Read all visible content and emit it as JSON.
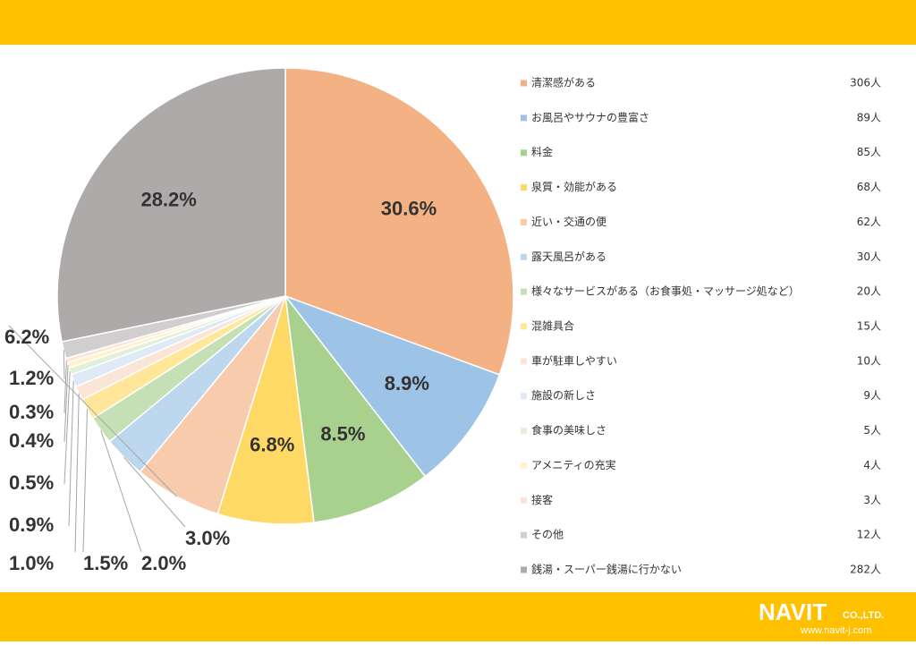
{
  "chart_data": {
    "type": "pie",
    "categories": [
      "清潔感がある",
      "お風呂やサウナの豊富さ",
      "料金",
      "泉質・効能がある",
      "近い・交通の便",
      "露天風呂がある",
      "様々なサービスがある（お食事処・マッサージ処など）",
      "混雑具合",
      "車が駐車しやすい",
      "施設の新しさ",
      "食事の美味しさ",
      "アメニティの充実",
      "接客",
      "その他",
      "銭湯・スーパー銭湯に行かない"
    ],
    "values": [
      30.6,
      8.9,
      8.5,
      6.8,
      6.2,
      3.0,
      2.0,
      1.5,
      1.0,
      0.9,
      0.5,
      0.4,
      0.3,
      1.2,
      28.2
    ],
    "value_labels": [
      "30.6%",
      "8.9%",
      "8.5%",
      "6.8%",
      "6.2%",
      "3.0%",
      "2.0%",
      "1.5%",
      "1.0%",
      "0.9%",
      "0.5%",
      "0.4%",
      "0.3%",
      "1.2%",
      "28.2%"
    ],
    "count_labels": [
      "306人",
      "89人",
      "85人",
      "68人",
      "62人",
      "30人",
      "20人",
      "15人",
      "10人",
      "9人",
      "5人",
      "4人",
      "3人",
      "12人",
      "282人"
    ],
    "colors": [
      "#f4b183",
      "#9dc3e6",
      "#a9d18e",
      "#ffd966",
      "#f8cbad",
      "#bdd7ee",
      "#c5e0b4",
      "#ffe699",
      "#fbe5d6",
      "#deebf7",
      "#e2f0d9",
      "#fff2cc",
      "#fce4d6",
      "#d0cece",
      "#aeaaaa"
    ],
    "legend": "right"
  },
  "footer": {
    "logo": "NAVIT",
    "company": "CO.,LTD.",
    "url": "www.navit-j.com"
  }
}
